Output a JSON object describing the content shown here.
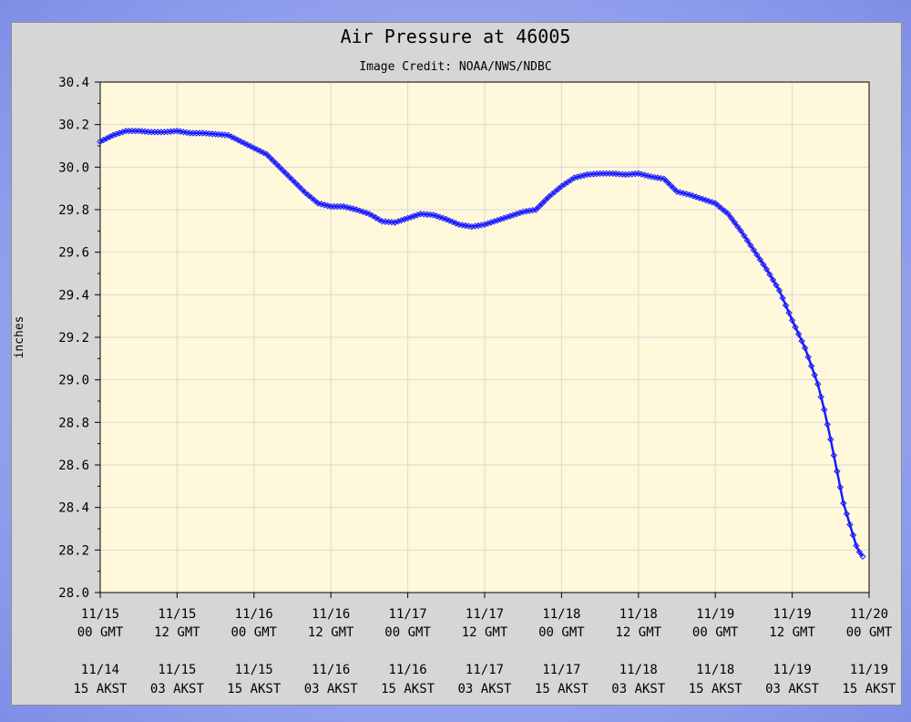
{
  "chart_data": {
    "type": "line",
    "title": "Air Pressure at 46005",
    "subtitle": "Image Credit: NOAA/NWS/NDBC",
    "xlabel": "",
    "ylabel": "inches",
    "ylim": [
      28.0,
      30.4
    ],
    "y_ticks": [
      "28.0",
      "28.2",
      "28.4",
      "28.6",
      "28.8",
      "29.0",
      "29.2",
      "29.4",
      "29.6",
      "29.8",
      "30.0",
      "30.2",
      "30.4"
    ],
    "xlim_hours": [
      0,
      120
    ],
    "x_ticks": [
      {
        "gmt_date": "11/15",
        "gmt_time": "00 GMT",
        "akst_date": "11/14",
        "akst_time": "15 AKST"
      },
      {
        "gmt_date": "11/15",
        "gmt_time": "12 GMT",
        "akst_date": "11/15",
        "akst_time": "03 AKST"
      },
      {
        "gmt_date": "11/16",
        "gmt_time": "00 GMT",
        "akst_date": "11/15",
        "akst_time": "15 AKST"
      },
      {
        "gmt_date": "11/16",
        "gmt_time": "12 GMT",
        "akst_date": "11/16",
        "akst_time": "03 AKST"
      },
      {
        "gmt_date": "11/17",
        "gmt_time": "00 GMT",
        "akst_date": "11/16",
        "akst_time": "15 AKST"
      },
      {
        "gmt_date": "11/17",
        "gmt_time": "12 GMT",
        "akst_date": "11/17",
        "akst_time": "03 AKST"
      },
      {
        "gmt_date": "11/18",
        "gmt_time": "00 GMT",
        "akst_date": "11/17",
        "akst_time": "15 AKST"
      },
      {
        "gmt_date": "11/18",
        "gmt_time": "12 GMT",
        "akst_date": "11/18",
        "akst_time": "03 AKST"
      },
      {
        "gmt_date": "11/19",
        "gmt_time": "00 GMT",
        "akst_date": "11/18",
        "akst_time": "15 AKST"
      },
      {
        "gmt_date": "11/19",
        "gmt_time": "12 GMT",
        "akst_date": "11/19",
        "akst_time": "03 AKST"
      },
      {
        "gmt_date": "11/20",
        "gmt_time": "00 GMT",
        "akst_date": "11/19",
        "akst_time": "15 AKST"
      }
    ],
    "grid": true,
    "series": [
      {
        "color": "#1a1aff",
        "marker": "diamond",
        "x_hours": [
          0,
          2,
          4,
          6,
          8,
          10,
          12,
          14,
          16,
          18,
          20,
          22,
          24,
          26,
          28,
          30,
          32,
          34,
          36,
          38,
          40,
          42,
          44,
          46,
          48,
          50,
          52,
          54,
          56,
          58,
          60,
          62,
          64,
          66,
          68,
          70,
          72,
          74,
          76,
          78,
          80,
          82,
          84,
          86,
          88,
          90,
          92,
          94,
          96,
          98,
          100,
          102,
          104,
          106,
          108,
          110,
          112,
          113,
          114,
          115,
          116,
          117,
          118,
          118.5,
          119
        ],
        "values": [
          30.12,
          30.15,
          30.17,
          30.17,
          30.165,
          30.165,
          30.17,
          30.16,
          30.16,
          30.155,
          30.15,
          30.12,
          30.09,
          30.06,
          30.0,
          29.94,
          29.88,
          29.83,
          29.815,
          29.815,
          29.8,
          29.78,
          29.745,
          29.74,
          29.76,
          29.78,
          29.775,
          29.755,
          29.73,
          29.72,
          29.73,
          29.75,
          29.77,
          29.79,
          29.8,
          29.86,
          29.91,
          29.95,
          29.965,
          29.97,
          29.97,
          29.965,
          29.97,
          29.955,
          29.945,
          29.885,
          29.87,
          29.85,
          29.83,
          29.78,
          29.7,
          29.61,
          29.52,
          29.42,
          29.28,
          29.15,
          28.98,
          28.86,
          28.72,
          28.57,
          28.42,
          28.32,
          28.22,
          28.19,
          28.17
        ]
      }
    ]
  }
}
